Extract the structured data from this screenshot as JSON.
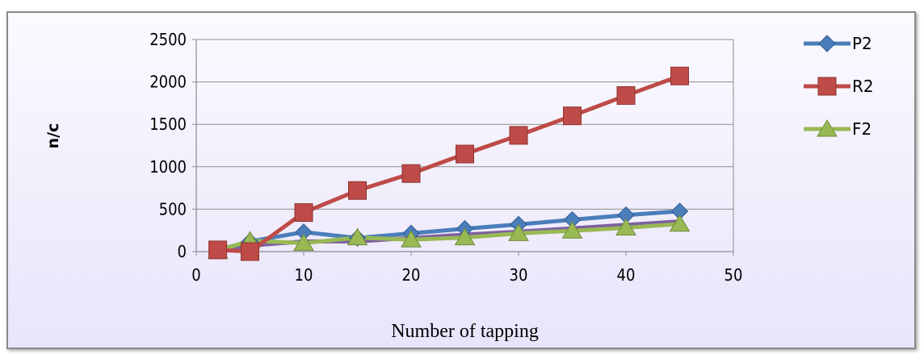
{
  "chart_data": {
    "type": "line",
    "title": "",
    "xlabel": "Number of tapping",
    "ylabel": "n/c",
    "xlim": [
      0,
      50
    ],
    "ylim": [
      0,
      2500
    ],
    "xticks": [
      0,
      10,
      20,
      30,
      40,
      50
    ],
    "yticks": [
      0,
      500,
      1000,
      1500,
      2000,
      2500
    ],
    "grid": "horizontal",
    "legend_position": "right",
    "series": [
      {
        "name": "P2",
        "color": "#4a7ebb",
        "marker": "diamond",
        "x": [
          2,
          5,
          10,
          15,
          20,
          25,
          30,
          35,
          40,
          45
        ],
        "y": [
          20,
          120,
          230,
          160,
          215,
          270,
          320,
          375,
          430,
          475
        ]
      },
      {
        "name": "R2",
        "color": "#be4b48",
        "marker": "square",
        "x": [
          2,
          5,
          10,
          15,
          20,
          25,
          30,
          35,
          40,
          45
        ],
        "y": [
          20,
          0,
          460,
          720,
          920,
          1150,
          1370,
          1600,
          1840,
          2070
        ]
      },
      {
        "name": "F2",
        "color": "#98b954",
        "marker": "triangle",
        "x": [
          2,
          5,
          10,
          15,
          20,
          25,
          30,
          35,
          40,
          45
        ],
        "y": [
          10,
          130,
          100,
          165,
          140,
          165,
          215,
          245,
          280,
          325
        ]
      },
      {
        "name": "",
        "color": "#7d60a0",
        "marker": "none",
        "x": [
          2,
          5,
          10,
          15,
          20,
          25,
          30,
          35,
          40,
          45
        ],
        "y": [
          0,
          70,
          120,
          120,
          160,
          200,
          235,
          275,
          315,
          355
        ]
      }
    ]
  }
}
